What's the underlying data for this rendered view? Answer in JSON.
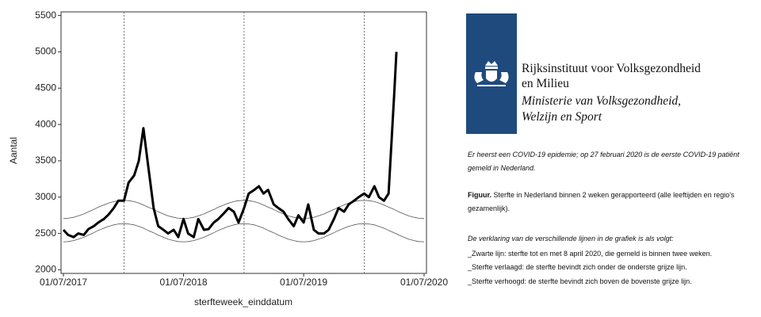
{
  "chart_data": {
    "type": "line",
    "x_label": "sterfteweek_einddatum",
    "y_label": "Aantal",
    "x": [
      "01/07/2017",
      "15/07/2017",
      "01/08/2017",
      "15/08/2017",
      "01/09/2017",
      "15/09/2017",
      "01/10/2017",
      "15/10/2017",
      "01/11/2017",
      "15/11/2017",
      "01/12/2017",
      "15/12/2017",
      "01/01/2018",
      "15/01/2018",
      "01/02/2018",
      "15/02/2018",
      "01/03/2018",
      "15/03/2018",
      "01/04/2018",
      "15/04/2018",
      "01/05/2018",
      "15/05/2018",
      "01/06/2018",
      "15/06/2018",
      "01/07/2018",
      "15/07/2018",
      "01/08/2018",
      "15/08/2018",
      "01/09/2018",
      "15/09/2018",
      "01/10/2018",
      "15/10/2018",
      "01/11/2018",
      "15/11/2018",
      "01/12/2018",
      "15/12/2018",
      "01/01/2019",
      "15/01/2019",
      "01/02/2019",
      "15/02/2019",
      "01/03/2019",
      "15/03/2019",
      "01/04/2019",
      "15/04/2019",
      "01/05/2019",
      "15/05/2019",
      "01/06/2019",
      "15/06/2019",
      "01/07/2019",
      "15/07/2019",
      "01/08/2019",
      "15/08/2019",
      "01/09/2019",
      "15/09/2019",
      "01/10/2019",
      "15/10/2019",
      "01/11/2019",
      "15/11/2019",
      "01/12/2019",
      "15/12/2019",
      "01/01/2020",
      "15/01/2020",
      "01/02/2020",
      "15/02/2020",
      "01/03/2020",
      "15/03/2020",
      "01/04/2020",
      "08/04/2020",
      "15/04/2020",
      "01/05/2020",
      "15/05/2020",
      "01/06/2020",
      "15/06/2020",
      "01/07/2020"
    ],
    "series": [
      {
        "color": "#555555",
        "width": 0.8,
        "values": [
          2705,
          2709,
          2722,
          2742,
          2768,
          2798,
          2830,
          2862,
          2893,
          2918,
          2938,
          2951,
          2955,
          2951,
          2938,
          2918,
          2893,
          2862,
          2830,
          2798,
          2768,
          2742,
          2722,
          2709,
          2705,
          2709,
          2722,
          2742,
          2768,
          2798,
          2830,
          2862,
          2893,
          2918,
          2938,
          2951,
          2955,
          2951,
          2938,
          2918,
          2893,
          2862,
          2830,
          2798,
          2768,
          2742,
          2722,
          2709,
          2705,
          2709,
          2722,
          2742,
          2768,
          2798,
          2830,
          2862,
          2893,
          2918,
          2938,
          2951,
          2955,
          2951,
          2938,
          2918,
          2893,
          2862,
          2830,
          2815,
          2798,
          2768,
          2742,
          2722,
          2709,
          2705
        ]
      },
      {
        "color": "#555555",
        "width": 0.8,
        "values": [
          2385,
          2389,
          2402,
          2422,
          2448,
          2478,
          2510,
          2542,
          2573,
          2598,
          2618,
          2631,
          2635,
          2631,
          2618,
          2598,
          2573,
          2542,
          2510,
          2478,
          2448,
          2422,
          2402,
          2389,
          2385,
          2389,
          2402,
          2422,
          2448,
          2478,
          2510,
          2542,
          2573,
          2598,
          2618,
          2631,
          2635,
          2631,
          2618,
          2598,
          2573,
          2542,
          2510,
          2478,
          2448,
          2422,
          2402,
          2389,
          2385,
          2389,
          2402,
          2422,
          2448,
          2478,
          2510,
          2542,
          2573,
          2598,
          2618,
          2631,
          2635,
          2631,
          2618,
          2598,
          2573,
          2542,
          2510,
          2495,
          2478,
          2448,
          2422,
          2402,
          2389,
          2385
        ]
      },
      {
        "color": "#000000",
        "width": 3,
        "values": [
          2550,
          2480,
          2450,
          2500,
          2480,
          2560,
          2600,
          2650,
          2700,
          2760,
          2850,
          2950,
          2950,
          3200,
          3300,
          3500,
          3950,
          3450,
          2850,
          2600,
          2550,
          2500,
          2550,
          2450,
          2700,
          2500,
          2450,
          2700,
          2550,
          2560,
          2650,
          2700,
          2780,
          2850,
          2800,
          2650,
          2850,
          3050,
          3100,
          3150,
          3050,
          3100,
          2900,
          2850,
          2800,
          2700,
          2600,
          2750,
          2650,
          2900,
          2550,
          2500,
          2500,
          2550,
          2700,
          2850,
          2800,
          2900,
          2950,
          3000,
          3050,
          3000,
          3150,
          3000,
          2950,
          3050,
          4400,
          5000,
          null,
          null,
          null,
          null,
          null,
          null
        ]
      }
    ],
    "xlim": [
      "01/07/2017",
      "01/07/2020"
    ],
    "xticks": [
      "01/07/2017",
      "01/07/2018",
      "01/07/2019",
      "01/07/2020"
    ],
    "ylim": [
      1950,
      5550
    ],
    "yticks": [
      2000,
      2500,
      3000,
      3500,
      4000,
      4500,
      5000,
      5500
    ],
    "vlines": [
      "01/01/2018",
      "01/01/2019",
      "01/01/2020"
    ]
  },
  "panel": {
    "org": [
      "Rijksinstituut voor Volksgezondheid",
      "en Milieu"
    ],
    "ministry": [
      "Ministerie van Volksgezondheid,",
      "Welzijn en Sport"
    ],
    "notice": "Er heerst een COVID-19 epidemie;  op 27 februari 2020 is de eerste COVID-19 patiënt gemeld in Nederland.",
    "figure_label": "Figuur.",
    "figure_caption": "Sterfte in Nederland binnen 2 weken gerapporteerd (alle leeftijden en regio's gezamenlijk).",
    "legend_intro": "De verklaring van de verschillende lijnen in de grafiek is als volgt:",
    "legend_items": [
      "_Zwarte lijn: sterfte tot en met 8 april 2020, die gemeld is binnen twee weken.",
      "_Sterfte verlaagd: de sterfte bevindt zich onder de onderste grijze lijn.",
      "_Sterfte verhoogd: de sterfte bevindt zich boven de bovenste grijze lijn."
    ]
  }
}
